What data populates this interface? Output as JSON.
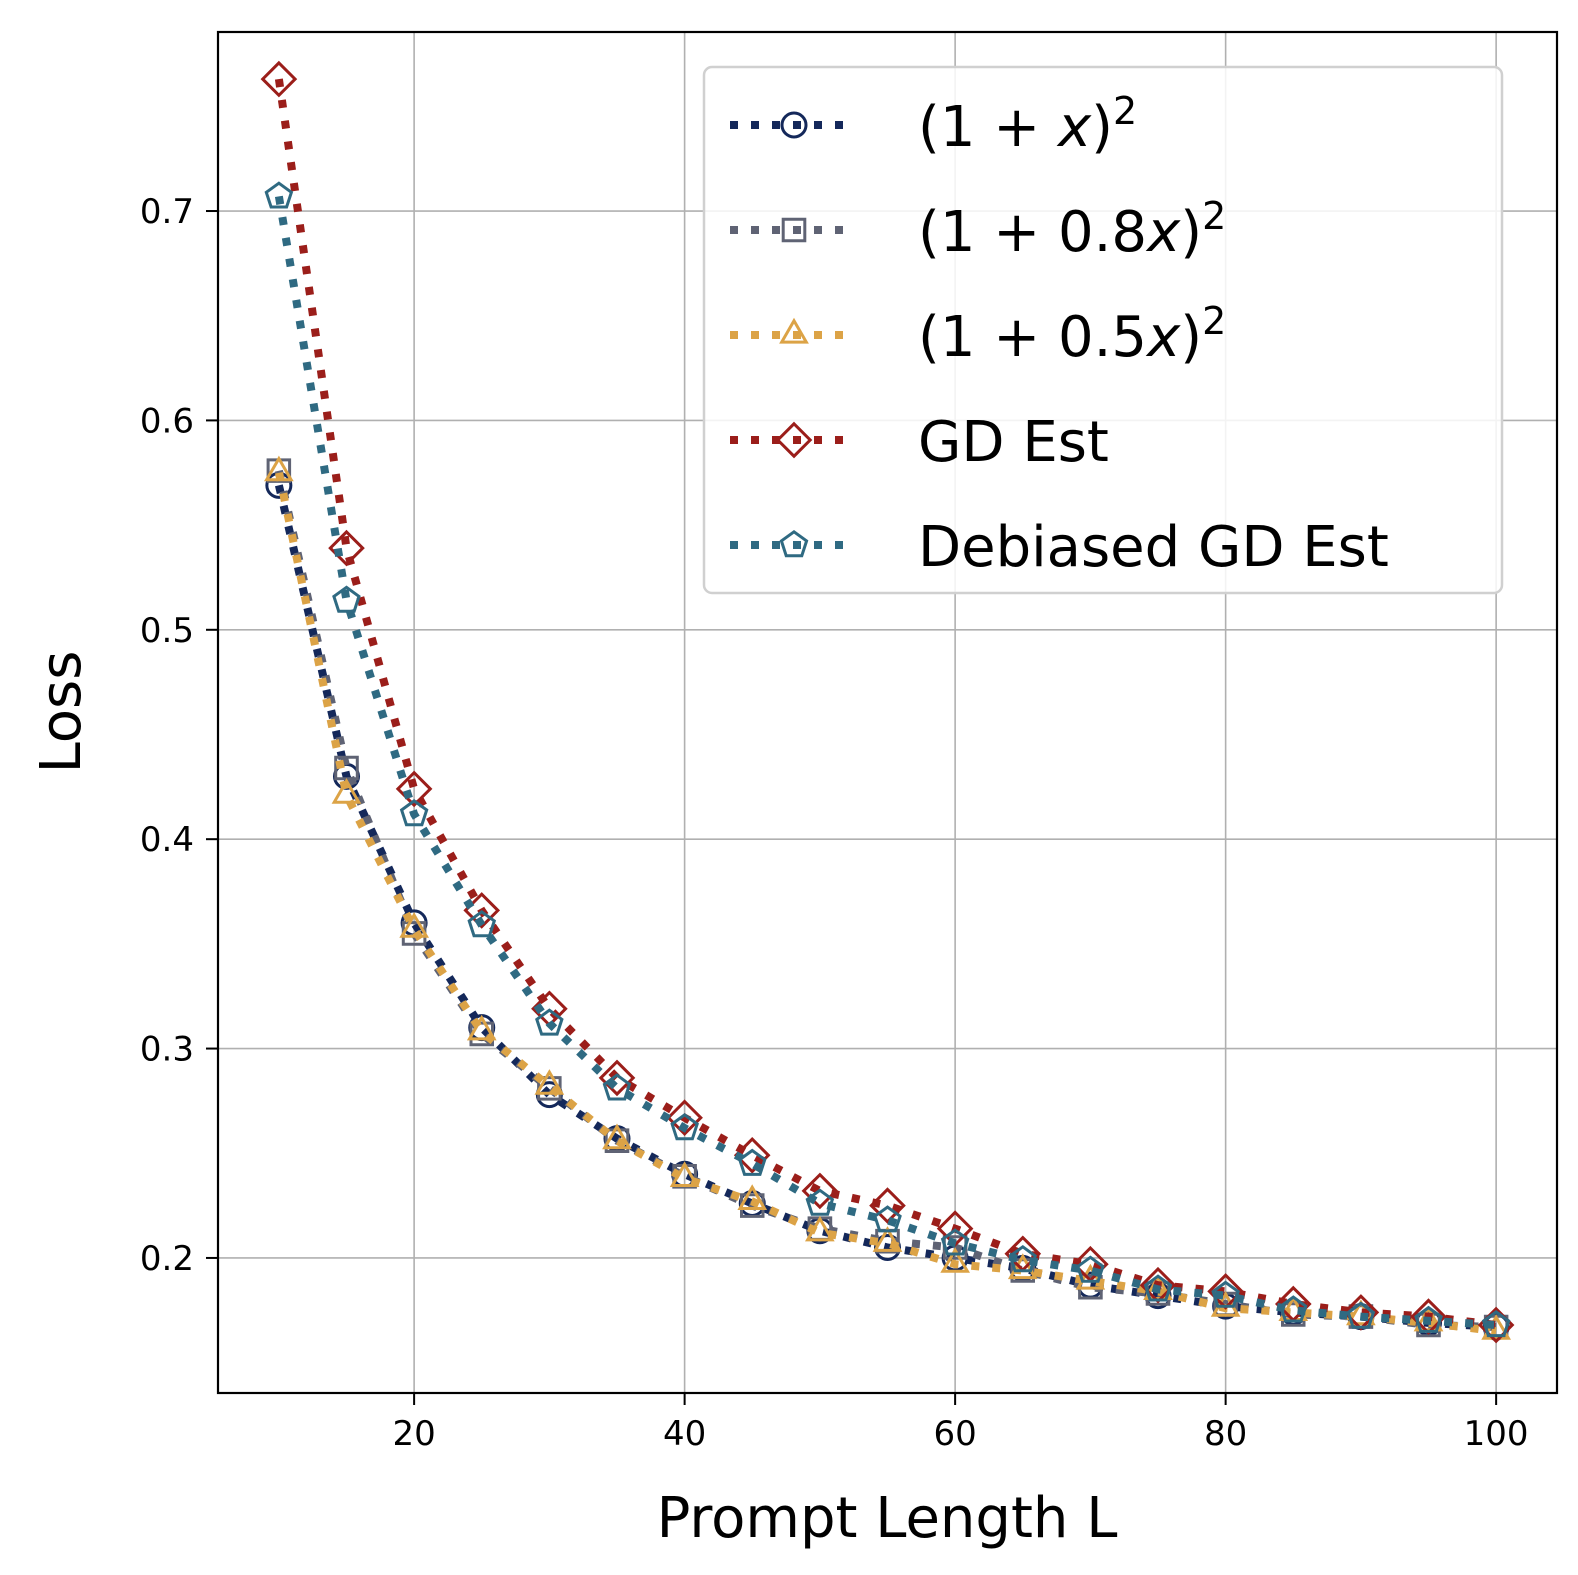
{
  "chart_data": {
    "type": "line",
    "title": "",
    "xlabel": "Prompt Length L",
    "ylabel": "Loss",
    "xlim": [
      5.5,
      104.5
    ],
    "ylim": [
      0.1355,
      0.7855
    ],
    "xticks": [
      20,
      40,
      60,
      80,
      100
    ],
    "xtick_labels": [
      "20",
      "40",
      "60",
      "80",
      "100"
    ],
    "yticks": [
      0.2,
      0.3,
      0.4,
      0.5,
      0.6,
      0.7
    ],
    "ytick_labels": [
      "0.2",
      "0.3",
      "0.4",
      "0.5",
      "0.6",
      "0.7"
    ],
    "grid": true,
    "legend_position": "top-right",
    "x": [
      10,
      15,
      20,
      25,
      30,
      35,
      40,
      45,
      50,
      55,
      60,
      65,
      70,
      75,
      80,
      85,
      90,
      95,
      100
    ],
    "series": [
      {
        "name": "(1+x)^2",
        "legend_base": "(1 + ",
        "legend_var": "x",
        "legend_close": ")",
        "legend_sup": "2",
        "color": "#14285a",
        "marker": "circle",
        "values": [
          0.569,
          0.43,
          0.36,
          0.31,
          0.278,
          0.257,
          0.24,
          0.226,
          0.213,
          0.205,
          0.2,
          0.195,
          0.187,
          0.182,
          0.177,
          0.174,
          0.172,
          0.169,
          0.167
        ]
      },
      {
        "name": "(1+0.8x)^2",
        "legend_base": "(1 + 0.8",
        "legend_var": "x",
        "legend_close": ")",
        "legend_sup": "2",
        "color": "#5f6374",
        "marker": "square",
        "values": [
          0.576,
          0.434,
          0.355,
          0.307,
          0.281,
          0.256,
          0.239,
          0.225,
          0.214,
          0.208,
          0.205,
          0.194,
          0.186,
          0.183,
          0.178,
          0.173,
          0.172,
          0.168,
          0.167
        ]
      },
      {
        "name": "(1+0.5x)^2",
        "legend_base": "(1 + 0.5",
        "legend_var": "x",
        "legend_close": ")",
        "legend_sup": "2",
        "color": "#dca346",
        "marker": "triangle",
        "values": [
          0.575,
          0.421,
          0.357,
          0.308,
          0.282,
          0.256,
          0.238,
          0.227,
          0.212,
          0.207,
          0.197,
          0.194,
          0.189,
          0.184,
          0.176,
          0.174,
          0.172,
          0.169,
          0.165
        ]
      },
      {
        "name": "GD Est",
        "legend_base": "GD Est",
        "legend_var": "",
        "legend_close": "",
        "legend_sup": "",
        "color": "#9b1e1a",
        "marker": "diamond",
        "values": [
          0.763,
          0.539,
          0.424,
          0.366,
          0.319,
          0.286,
          0.267,
          0.249,
          0.232,
          0.225,
          0.214,
          0.202,
          0.197,
          0.187,
          0.184,
          0.178,
          0.174,
          0.172,
          0.168
        ]
      },
      {
        "name": "Debiased GD Est",
        "legend_base": "Debiased GD Est",
        "legend_var": "",
        "legend_close": "",
        "legend_sup": "",
        "color": "#2f6a82",
        "marker": "pentagon",
        "values": [
          0.707,
          0.514,
          0.412,
          0.359,
          0.312,
          0.281,
          0.262,
          0.245,
          0.226,
          0.218,
          0.207,
          0.199,
          0.194,
          0.185,
          0.182,
          0.175,
          0.172,
          0.17,
          0.168
        ]
      }
    ]
  }
}
